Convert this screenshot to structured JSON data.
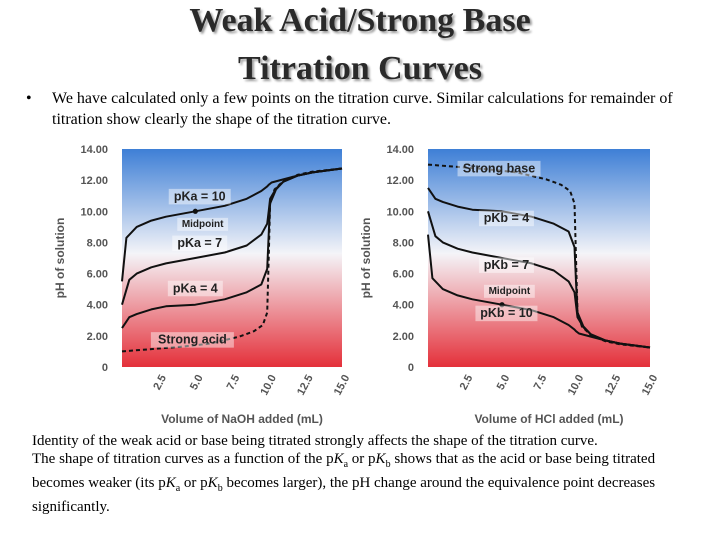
{
  "title": {
    "line1": "Weak Acid/Strong Base",
    "line2": "Titration Curves"
  },
  "bullet": {
    "marker": "•",
    "text": "We have calculated only a few points on the titration curve.  Similar calculations for remainder of titration show clearly the shape of the titration curve."
  },
  "bottom_text": {
    "p1": "Identity of the weak acid or base being titrated strongly affects the shape of the titration curve.",
    "p2_a": "The shape of titration curves as a function of the p",
    "p2_b": "K",
    "p2_c": "a",
    "p2_d": " or p",
    "p2_e": "K",
    "p2_f": "b",
    "p2_g": "  shows that as the acid or base being titrated becomes weaker (its p",
    "p2_h": "K",
    "p2_i": "a",
    "p2_j": "  or p",
    "p2_k": "K",
    "p2_l": "b",
    "p2_m": " becomes larger), the pH change around the equivalence point decreases significantly."
  },
  "colors": {
    "gradient_top": "#3e7fd6",
    "gradient_mid": "#f4f4f8",
    "gradient_bottom": "#e4303a"
  },
  "chart_data": [
    {
      "type": "line",
      "xlabel": "Volume of NaOH added (mL)",
      "ylabel": "pH of solution",
      "xlim": [
        0,
        15.0
      ],
      "ylim": [
        0,
        14.0
      ],
      "xticks": [
        "2.5",
        "5.0",
        "7.5",
        "10.0",
        "12.5",
        "15.0"
      ],
      "yticks": [
        "0",
        "2.00",
        "4.00",
        "6.00",
        "8.00",
        "10.00",
        "12.00",
        "14.00"
      ],
      "series": [
        {
          "name": "Strong acid",
          "dashed": true,
          "x": [
            0,
            2,
            4,
            6,
            8,
            9,
            9.6,
            9.9,
            10.0,
            10.1,
            10.4,
            11,
            12,
            13,
            15
          ],
          "y": [
            1.0,
            1.15,
            1.3,
            1.5,
            1.95,
            2.3,
            2.7,
            3.5,
            7.0,
            10.5,
            11.4,
            11.95,
            12.35,
            12.55,
            12.75
          ]
        },
        {
          "name": "pKa = 4",
          "dashed": false,
          "x": [
            0,
            0.5,
            1,
            2,
            3,
            5,
            7,
            8.5,
            9.5,
            9.9,
            10.0,
            10.1,
            10.5,
            11,
            12,
            13,
            15
          ],
          "y": [
            2.5,
            3.2,
            3.4,
            3.7,
            3.9,
            4.0,
            4.35,
            4.8,
            5.3,
            6.3,
            8.5,
            10.5,
            11.4,
            11.9,
            12.3,
            12.5,
            12.75
          ]
        },
        {
          "name": "pKa = 7",
          "dashed": false,
          "x": [
            0,
            0.5,
            1,
            2,
            3,
            5,
            7,
            8.5,
            9.5,
            9.9,
            10.0,
            10.1,
            10.5,
            11,
            12,
            13,
            15
          ],
          "y": [
            4.0,
            5.6,
            6.0,
            6.4,
            6.65,
            7.0,
            7.35,
            7.8,
            8.5,
            9.2,
            10.0,
            10.8,
            11.45,
            11.9,
            12.3,
            12.5,
            12.75
          ]
        },
        {
          "name": "pKa = 10",
          "dashed": false,
          "x": [
            0,
            0.3,
            1,
            2,
            3,
            5,
            7,
            8.5,
            9.5,
            9.9,
            10.0,
            10.2,
            11,
            12,
            13,
            15
          ],
          "y": [
            5.5,
            8.3,
            9.0,
            9.4,
            9.65,
            10.0,
            10.35,
            10.8,
            11.3,
            11.6,
            11.7,
            11.85,
            12.05,
            12.3,
            12.5,
            12.75
          ]
        }
      ],
      "annotations": [
        {
          "text": "pKa = 10",
          "x": 5.3,
          "y": 10.7
        },
        {
          "text": "Midpoint",
          "x": 5.5,
          "y": 9.0
        },
        {
          "text": "pKa = 7",
          "x": 5.3,
          "y": 7.7
        },
        {
          "text": "pKa = 4",
          "x": 5.0,
          "y": 4.8
        },
        {
          "text": "Strong acid",
          "x": 4.8,
          "y": 1.5
        }
      ],
      "midpoint": {
        "x": 5.0,
        "y": 10.0
      }
    },
    {
      "type": "line",
      "xlabel": "Volume of HCl added (mL)",
      "ylabel": "pH of solution",
      "xlim": [
        0,
        15.0
      ],
      "ylim": [
        0,
        14.0
      ],
      "xticks": [
        "2.5",
        "5.0",
        "7.5",
        "10.0",
        "12.5",
        "15.0"
      ],
      "yticks": [
        "0",
        "2.00",
        "4.00",
        "6.00",
        "8.00",
        "10.00",
        "12.00",
        "14.00"
      ],
      "series": [
        {
          "name": "Strong base",
          "dashed": true,
          "x": [
            0,
            2,
            4,
            6,
            8,
            9,
            9.6,
            9.9,
            10.0,
            10.1,
            10.4,
            11,
            12,
            13,
            15
          ],
          "y": [
            13.0,
            12.85,
            12.7,
            12.5,
            12.05,
            11.7,
            11.3,
            10.5,
            7.0,
            3.5,
            2.6,
            2.05,
            1.65,
            1.45,
            1.25
          ]
        },
        {
          "name": "pKb = 4",
          "dashed": false,
          "x": [
            0,
            0.5,
            1,
            2,
            3,
            5,
            7,
            8.5,
            9.5,
            9.9,
            10.0,
            10.1,
            10.5,
            11,
            12,
            13,
            15
          ],
          "y": [
            11.5,
            10.8,
            10.6,
            10.3,
            10.1,
            10.0,
            9.65,
            9.2,
            8.7,
            7.7,
            5.5,
            3.5,
            2.6,
            2.1,
            1.7,
            1.5,
            1.25
          ]
        },
        {
          "name": "pKb = 7",
          "dashed": false,
          "x": [
            0,
            0.5,
            1,
            2,
            3,
            5,
            7,
            8.5,
            9.5,
            9.9,
            10.0,
            10.1,
            10.5,
            11,
            12,
            13,
            15
          ],
          "y": [
            10.0,
            8.4,
            8.0,
            7.6,
            7.35,
            7.0,
            6.65,
            6.2,
            5.5,
            4.8,
            4.0,
            3.2,
            2.55,
            2.1,
            1.7,
            1.5,
            1.25
          ]
        },
        {
          "name": "pKb = 10",
          "dashed": false,
          "x": [
            0,
            0.3,
            1,
            2,
            3,
            5,
            7,
            8.5,
            9.5,
            9.9,
            10.0,
            10.2,
            11,
            12,
            13,
            15
          ],
          "y": [
            8.5,
            5.7,
            5.0,
            4.6,
            4.35,
            4.0,
            3.65,
            3.2,
            2.7,
            2.4,
            2.3,
            2.15,
            1.95,
            1.7,
            1.5,
            1.25
          ]
        }
      ],
      "annotations": [
        {
          "text": "Strong base",
          "x": 4.8,
          "y": 12.5
        },
        {
          "text": "pKb = 4",
          "x": 5.3,
          "y": 9.3
        },
        {
          "text": "pKb = 7",
          "x": 5.3,
          "y": 6.3
        },
        {
          "text": "Midpoint",
          "x": 5.5,
          "y": 4.7
        },
        {
          "text": "pKb = 10",
          "x": 5.3,
          "y": 3.2
        }
      ],
      "midpoint": {
        "x": 5.0,
        "y": 4.0
      }
    }
  ]
}
